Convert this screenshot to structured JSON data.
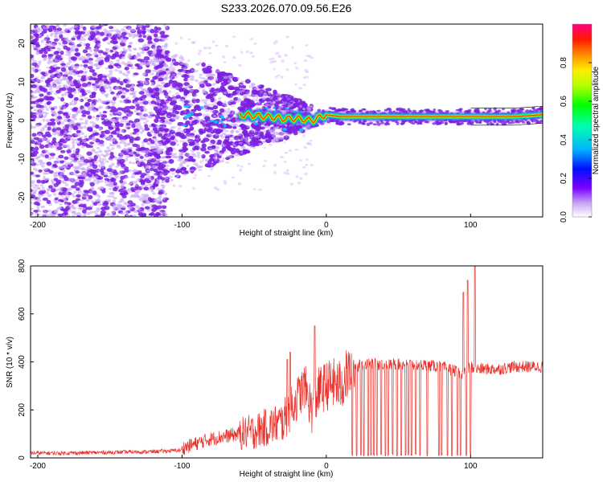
{
  "title": "S233.2026.070.09.56.E26",
  "colors": {
    "snr_line": "#e8312a",
    "ridge_core": "#ff2a00",
    "ridge_mid": "#ffd000",
    "ridge_outer": "#00ff66",
    "ridge_edge": "#00c8ff",
    "dots": "#7b1fe0",
    "dots_light": "#c9a8f5"
  },
  "chart_data": [
    {
      "type": "heatmap",
      "name": "spectrogram",
      "title": "S233.2026.070.09.56.E26",
      "xlabel": "Height of straight line (km)",
      "ylabel": "Frequency (Hz)",
      "xlim": [
        -205,
        150
      ],
      "ylim": [
        -25,
        25
      ],
      "xticks": [
        -200,
        -100,
        0,
        100
      ],
      "yticks": [
        -20,
        -10,
        0,
        10,
        20
      ],
      "ridge": {
        "x": [
          -60,
          -40,
          -30,
          -20,
          -10,
          0,
          10,
          20,
          40,
          60,
          80,
          90,
          100,
          110,
          130,
          150
        ],
        "freq": [
          1.5,
          1.0,
          0.5,
          0.5,
          0.0,
          1.5,
          1.0,
          1.0,
          1.0,
          1.0,
          1.0,
          1.0,
          1.0,
          1.0,
          1.0,
          1.5
        ]
      },
      "colorbar": {
        "label": "Normalized spectral amplitude",
        "range": [
          0.0,
          1.0
        ],
        "ticks": [
          0.0,
          0.2,
          0.4,
          0.6,
          0.8
        ]
      }
    },
    {
      "type": "line",
      "name": "snr",
      "xlabel": "Height of straight line (km)",
      "ylabel": "SNR (10 * v/v)",
      "xlim": [
        -205,
        150
      ],
      "ylim": [
        0,
        800
      ],
      "xticks": [
        -200,
        -100,
        0,
        100
      ],
      "yticks": [
        0,
        200,
        400,
        600,
        800
      ],
      "series": [
        {
          "name": "SNR",
          "x": [
            -205,
            -180,
            -150,
            -120,
            -100,
            -90,
            -80,
            -70,
            -60,
            -50,
            -40,
            -30,
            -25,
            -20,
            -15,
            -10,
            -5,
            0,
            5,
            10,
            15,
            20,
            25,
            30,
            40,
            50,
            60,
            70,
            80,
            85,
            90,
            95,
            100,
            105,
            110,
            120,
            130,
            140,
            150
          ],
          "values": [
            20,
            20,
            25,
            30,
            40,
            60,
            80,
            90,
            100,
            110,
            130,
            150,
            200,
            250,
            300,
            200,
            280,
            300,
            310,
            300,
            350,
            380,
            390,
            390,
            390,
            390,
            390,
            385,
            380,
            370,
            360,
            350,
            380,
            370,
            370,
            370,
            380,
            380,
            380
          ],
          "peaks": [
            {
              "x": -27,
              "y": 410
            },
            {
              "x": -25,
              "y": 440
            },
            {
              "x": -8,
              "y": 550
            },
            {
              "x": 95,
              "y": 690
            },
            {
              "x": 98,
              "y": 740
            },
            {
              "x": 103,
              "y": 800
            }
          ],
          "dropouts": [
            18,
            21,
            24,
            26,
            29,
            31,
            33,
            35,
            38,
            41,
            43,
            46,
            49,
            52,
            55,
            57,
            59,
            62,
            65,
            70,
            78,
            80,
            84,
            87,
            91,
            93,
            97,
            100
          ]
        }
      ]
    }
  ]
}
